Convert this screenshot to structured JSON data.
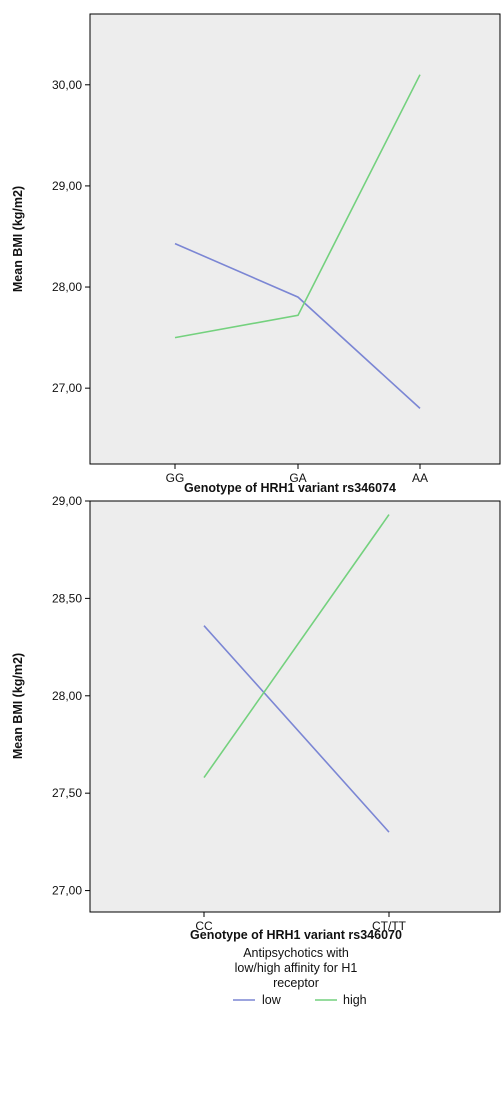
{
  "chart_data": [
    {
      "type": "line",
      "title": "",
      "xlabel": "Genotype of HRH1 variant rs346074",
      "ylabel": "Mean BMI (kg/m2)",
      "categories": [
        "GG",
        "GA",
        "AA"
      ],
      "y_ticks": [
        "27,00",
        "28,00",
        "29,00",
        "30,00"
      ],
      "y_tick_values": [
        27,
        28,
        29,
        30
      ],
      "ylim": [
        26.25,
        30.7
      ],
      "grid": false,
      "series": [
        {
          "name": "low",
          "values": [
            28.43,
            27.9,
            26.8
          ],
          "color": "#7b86d4"
        },
        {
          "name": "high",
          "values": [
            27.5,
            27.72,
            30.1
          ],
          "color": "#74d17e"
        }
      ]
    },
    {
      "type": "line",
      "title": "",
      "xlabel": "Genotype of HRH1 variant rs346070",
      "ylabel": "Mean BMI (kg/m2)",
      "categories": [
        "CC",
        "CT/TT"
      ],
      "y_ticks": [
        "27,00",
        "27,50",
        "28,00",
        "28,50",
        "29,00"
      ],
      "y_tick_values": [
        27,
        27.5,
        28,
        28.5,
        29
      ],
      "ylim": [
        26.89,
        29.0
      ],
      "grid": false,
      "series": [
        {
          "name": "low",
          "values": [
            28.36,
            27.3
          ],
          "color": "#7b86d4"
        },
        {
          "name": "high",
          "values": [
            27.58,
            28.93
          ],
          "color": "#74d17e"
        }
      ]
    }
  ],
  "legend": {
    "title_lines": [
      "Antipsychotics with",
      "low/high affinity for H1",
      "receptor"
    ],
    "placement": "bottom-center",
    "items": [
      {
        "label": "low",
        "color": "#7b86d4"
      },
      {
        "label": "high",
        "color": "#74d17e"
      }
    ]
  }
}
